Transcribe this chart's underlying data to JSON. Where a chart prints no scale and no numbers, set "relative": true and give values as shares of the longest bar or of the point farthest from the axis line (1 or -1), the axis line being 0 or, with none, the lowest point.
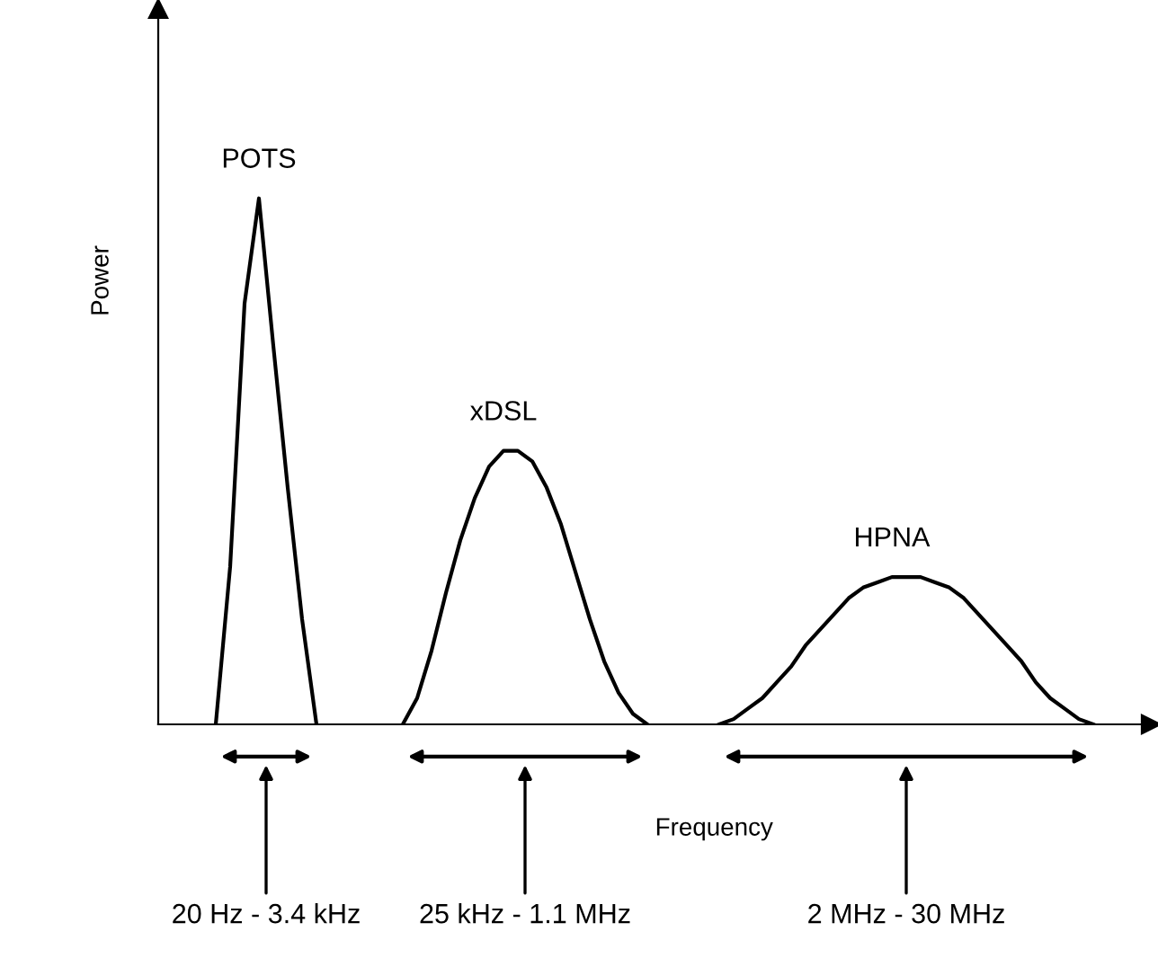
{
  "chart_data": {
    "type": "line",
    "relative": true,
    "xlabel": "Frequency",
    "ylabel": "Power",
    "legend": false,
    "marker": "none",
    "line_style": "solid",
    "categories": [
      null,
      null,
      null,
      null,
      null,
      null,
      null,
      null,
      null,
      null,
      null,
      null,
      null,
      null,
      null,
      null,
      null,
      null,
      null,
      null,
      null,
      null,
      null,
      null,
      null,
      null,
      null,
      null,
      null,
      null,
      null,
      null,
      null,
      null,
      null,
      null,
      null,
      null,
      null,
      null,
      null,
      null,
      null,
      null,
      null,
      null,
      null,
      null,
      null,
      null,
      null,
      null,
      null,
      null,
      null,
      null,
      null,
      null,
      null,
      null,
      null,
      null,
      null,
      null,
      null,
      null,
      null,
      null,
      null,
      null
    ],
    "series": [
      {
        "name": "POTS",
        "color": "#000000",
        "values": [
          null,
          null,
          null,
          null,
          0,
          0.3,
          0.8,
          1.0,
          0.72,
          0.45,
          0.2,
          0,
          null,
          null,
          null,
          null,
          null,
          null,
          null,
          null,
          null,
          null,
          null,
          null,
          null,
          null,
          null,
          null,
          null,
          null,
          null,
          null,
          null,
          null,
          null,
          null,
          null,
          null,
          null,
          null,
          null,
          null,
          null,
          null,
          null,
          null,
          null,
          null,
          null,
          null,
          null,
          null,
          null,
          null,
          null,
          null,
          null,
          null,
          null,
          null,
          null,
          null,
          null,
          null,
          null,
          null,
          null,
          null,
          null,
          null
        ]
      },
      {
        "name": "xDSL",
        "color": "#000000",
        "values": [
          null,
          null,
          null,
          null,
          null,
          null,
          null,
          null,
          null,
          null,
          null,
          null,
          null,
          null,
          null,
          null,
          null,
          0,
          0.05,
          0.14,
          0.25,
          0.35,
          0.43,
          0.49,
          0.52,
          0.52,
          0.5,
          0.45,
          0.38,
          0.29,
          0.2,
          0.12,
          0.06,
          0.02,
          0,
          null,
          null,
          null,
          null,
          null,
          null,
          null,
          null,
          null,
          null,
          null,
          null,
          null,
          null,
          null,
          null,
          null,
          null,
          null,
          null,
          null,
          null,
          null,
          null,
          null,
          null,
          null,
          null,
          null,
          null,
          null,
          null,
          null,
          null,
          null
        ]
      },
      {
        "name": "HPNA",
        "color": "#000000",
        "values": [
          null,
          null,
          null,
          null,
          null,
          null,
          null,
          null,
          null,
          null,
          null,
          null,
          null,
          null,
          null,
          null,
          null,
          null,
          null,
          null,
          null,
          null,
          null,
          null,
          null,
          null,
          null,
          null,
          null,
          null,
          null,
          null,
          null,
          null,
          null,
          null,
          null,
          null,
          null,
          0,
          0.01,
          0.03,
          0.05,
          0.08,
          0.11,
          0.15,
          0.18,
          0.21,
          0.24,
          0.26,
          0.27,
          0.28,
          0.28,
          0.28,
          0.27,
          0.26,
          0.24,
          0.21,
          0.18,
          0.15,
          0.12,
          0.08,
          0.05,
          0.03,
          0.01,
          0,
          null,
          null,
          null,
          null
        ]
      }
    ],
    "annotations": [
      "20 Hz - 3.4 kHz",
      "25 kHz - 1.1 MHz",
      "2 MHz - 30 MHz"
    ]
  }
}
